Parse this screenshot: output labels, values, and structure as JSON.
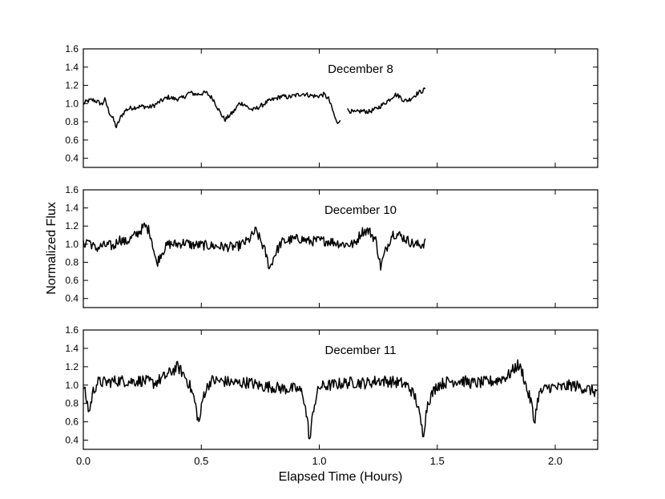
{
  "chart_data": {
    "type": "line",
    "xlabel": "Elapsed Time (Hours)",
    "ylabel": "Normalized Flux",
    "xlim": [
      0,
      2.18
    ],
    "x_ticks": [
      "0.0",
      "0.5",
      "1.0",
      "1.5",
      "2.0"
    ],
    "y_ticks": [
      "0.4",
      "0.6",
      "0.8",
      "1.0",
      "1.2",
      "1.4",
      "1.6"
    ],
    "ylim": [
      0.3,
      1.6
    ],
    "grid": false,
    "line_color": "#000000",
    "panels": [
      {
        "title": "December 8",
        "noise": 0.025,
        "segments": [
          {
            "points": [
              [
                0.0,
                1.0
              ],
              [
                0.02,
                1.03
              ],
              [
                0.04,
                1.04
              ],
              [
                0.06,
                1.02
              ],
              [
                0.08,
                0.99
              ],
              [
                0.09,
                1.05
              ],
              [
                0.1,
                0.98
              ],
              [
                0.11,
                0.9
              ],
              [
                0.125,
                0.84
              ],
              [
                0.14,
                0.74
              ],
              [
                0.16,
                0.86
              ],
              [
                0.18,
                0.93
              ],
              [
                0.2,
                0.95
              ],
              [
                0.22,
                0.96
              ],
              [
                0.25,
                0.97
              ],
              [
                0.28,
                0.96
              ],
              [
                0.3,
                0.98
              ],
              [
                0.33,
                1.03
              ],
              [
                0.36,
                1.07
              ],
              [
                0.39,
                1.05
              ],
              [
                0.42,
                1.06
              ],
              [
                0.45,
                1.12
              ],
              [
                0.48,
                1.1
              ],
              [
                0.52,
                1.12
              ],
              [
                0.55,
                1.05
              ],
              [
                0.58,
                0.9
              ],
              [
                0.6,
                0.82
              ],
              [
                0.62,
                0.87
              ],
              [
                0.64,
                0.92
              ],
              [
                0.66,
                1.0
              ],
              [
                0.68,
                1.0
              ],
              [
                0.7,
                0.95
              ],
              [
                0.72,
                0.93
              ],
              [
                0.75,
                0.97
              ],
              [
                0.78,
                1.02
              ],
              [
                0.81,
                1.05
              ],
              [
                0.84,
                1.08
              ],
              [
                0.87,
                1.07
              ],
              [
                0.9,
                1.09
              ],
              [
                0.93,
                1.11
              ],
              [
                0.96,
                1.09
              ],
              [
                0.99,
                1.08
              ],
              [
                1.02,
                1.1
              ],
              [
                1.04,
                1.05
              ],
              [
                1.06,
                0.9
              ],
              [
                1.075,
                0.78
              ],
              [
                1.09,
                0.84
              ]
            ]
          },
          {
            "points": [
              [
                1.12,
                0.93
              ],
              [
                1.15,
                0.9
              ],
              [
                1.18,
                0.92
              ],
              [
                1.21,
                0.91
              ],
              [
                1.24,
                0.94
              ],
              [
                1.27,
                0.99
              ],
              [
                1.3,
                1.05
              ],
              [
                1.32,
                1.1
              ],
              [
                1.34,
                1.08
              ],
              [
                1.36,
                1.03
              ],
              [
                1.38,
                1.04
              ],
              [
                1.4,
                1.08
              ],
              [
                1.42,
                1.12
              ],
              [
                1.44,
                1.14
              ],
              [
                1.45,
                1.17
              ]
            ]
          }
        ]
      },
      {
        "title": "December 10",
        "noise": 0.055,
        "segments": [
          {
            "points": [
              [
                0.0,
                0.99
              ],
              [
                0.02,
                1.05
              ],
              [
                0.05,
                0.95
              ],
              [
                0.08,
                0.98
              ],
              [
                0.11,
                0.99
              ],
              [
                0.13,
                0.97
              ],
              [
                0.15,
                1.06
              ],
              [
                0.18,
                1.02
              ],
              [
                0.2,
                1.06
              ],
              [
                0.23,
                1.12
              ],
              [
                0.26,
                1.2
              ],
              [
                0.28,
                1.15
              ],
              [
                0.29,
                1.05
              ],
              [
                0.31,
                0.78
              ],
              [
                0.33,
                0.9
              ],
              [
                0.36,
                1.0
              ],
              [
                0.4,
                1.0
              ],
              [
                0.43,
                1.02
              ],
              [
                0.46,
                0.99
              ],
              [
                0.5,
                0.99
              ],
              [
                0.55,
                0.98
              ],
              [
                0.6,
                0.97
              ],
              [
                0.65,
                0.97
              ],
              [
                0.7,
                1.04
              ],
              [
                0.73,
                1.15
              ],
              [
                0.75,
                1.05
              ],
              [
                0.77,
                0.92
              ],
              [
                0.79,
                0.73
              ],
              [
                0.81,
                0.88
              ],
              [
                0.84,
                1.02
              ],
              [
                0.88,
                1.05
              ],
              [
                0.92,
                1.06
              ],
              [
                0.96,
                1.03
              ],
              [
                1.0,
                1.04
              ],
              [
                1.05,
                1.03
              ],
              [
                1.1,
                1.0
              ],
              [
                1.15,
                1.0
              ],
              [
                1.18,
                1.14
              ],
              [
                1.21,
                1.15
              ],
              [
                1.24,
                1.04
              ],
              [
                1.26,
                0.75
              ],
              [
                1.28,
                0.92
              ],
              [
                1.31,
                1.12
              ],
              [
                1.34,
                1.1
              ],
              [
                1.37,
                1.05
              ],
              [
                1.4,
                1.0
              ],
              [
                1.43,
                0.99
              ],
              [
                1.45,
                1.02
              ]
            ]
          }
        ]
      },
      {
        "title": "December 11",
        "noise": 0.065,
        "segments": [
          {
            "points": [
              [
                0.0,
                1.0
              ],
              [
                0.01,
                0.88
              ],
              [
                0.025,
                0.7
              ],
              [
                0.04,
                0.92
              ],
              [
                0.06,
                1.03
              ],
              [
                0.1,
                1.03
              ],
              [
                0.15,
                1.05
              ],
              [
                0.2,
                1.04
              ],
              [
                0.25,
                1.05
              ],
              [
                0.3,
                1.02
              ],
              [
                0.35,
                1.1
              ],
              [
                0.4,
                1.2
              ],
              [
                0.43,
                1.1
              ],
              [
                0.45,
                1.0
              ],
              [
                0.47,
                0.85
              ],
              [
                0.49,
                0.58
              ],
              [
                0.51,
                0.9
              ],
              [
                0.54,
                1.05
              ],
              [
                0.6,
                1.04
              ],
              [
                0.65,
                1.02
              ],
              [
                0.7,
                1.03
              ],
              [
                0.75,
                0.99
              ],
              [
                0.8,
                0.98
              ],
              [
                0.85,
                0.96
              ],
              [
                0.9,
                0.96
              ],
              [
                0.93,
                0.92
              ],
              [
                0.95,
                0.6
              ],
              [
                0.96,
                0.38
              ],
              [
                0.975,
                0.75
              ],
              [
                1.0,
                0.98
              ],
              [
                1.05,
                1.0
              ],
              [
                1.1,
                1.02
              ],
              [
                1.15,
                1.03
              ],
              [
                1.2,
                1.02
              ],
              [
                1.25,
                1.05
              ],
              [
                1.3,
                1.04
              ],
              [
                1.35,
                1.02
              ],
              [
                1.38,
                0.98
              ],
              [
                1.41,
                0.85
              ],
              [
                1.43,
                0.6
              ],
              [
                1.44,
                0.46
              ],
              [
                1.46,
                0.82
              ],
              [
                1.5,
                1.0
              ],
              [
                1.55,
                1.04
              ],
              [
                1.6,
                1.05
              ],
              [
                1.65,
                1.02
              ],
              [
                1.7,
                1.03
              ],
              [
                1.75,
                1.05
              ],
              [
                1.8,
                1.1
              ],
              [
                1.84,
                1.22
              ],
              [
                1.86,
                1.15
              ],
              [
                1.88,
                0.95
              ],
              [
                1.9,
                0.8
              ],
              [
                1.91,
                0.58
              ],
              [
                1.93,
                0.9
              ],
              [
                1.97,
                0.98
              ],
              [
                2.02,
                0.97
              ],
              [
                2.07,
                1.0
              ],
              [
                2.12,
                0.97
              ],
              [
                2.18,
                0.92
              ]
            ]
          }
        ]
      }
    ]
  }
}
